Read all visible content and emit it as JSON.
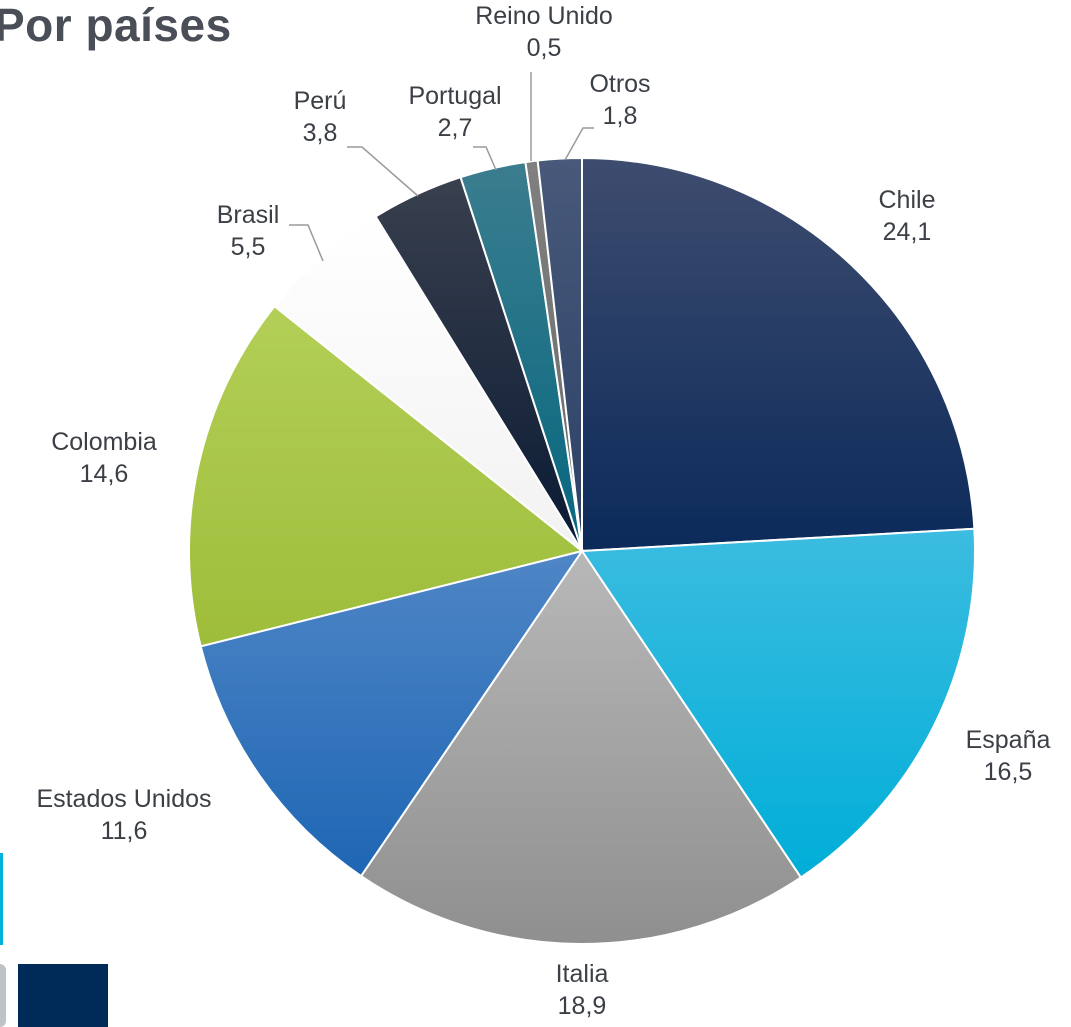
{
  "title": "Por países",
  "chart_data": {
    "type": "pie",
    "start_angle_deg": 0,
    "direction": "clockwise",
    "slices": [
      {
        "name": "Chile",
        "value": 24.1,
        "label": "24,1",
        "color": "#0b2a5a",
        "color_light": "#3e4c6e",
        "label_pos": "outside"
      },
      {
        "name": "España",
        "value": 16.5,
        "label": "16,5",
        "color": "#00aed8",
        "color_light": "#3cbce0",
        "label_pos": "outside"
      },
      {
        "name": "Italia",
        "value": 18.9,
        "label": "18,9",
        "color": "#8f8f8f",
        "color_light": "#b8b8b8",
        "label_pos": "outside"
      },
      {
        "name": "Estados Unidos",
        "value": 11.6,
        "label": "11,6",
        "color": "#1e66b4",
        "color_light": "#4f86c6",
        "label_pos": "outside"
      },
      {
        "name": "Colombia",
        "value": 14.6,
        "label": "14,6",
        "color": "#9ebd3a",
        "color_light": "#b3cf57",
        "label_pos": "outside"
      },
      {
        "name": "Brasil",
        "value": 5.5,
        "label": "5,5",
        "color": "#f2f2f2",
        "color_light": "#ffffff",
        "label_pos": "leader"
      },
      {
        "name": "Perú",
        "value": 3.8,
        "label": "3,8",
        "color": "#0a1a33",
        "color_light": "#39404e",
        "label_pos": "leader"
      },
      {
        "name": "Portugal",
        "value": 2.7,
        "label": "2,7",
        "color": "#06677e",
        "color_light": "#3b7d8f",
        "label_pos": "leader"
      },
      {
        "name": "Reino Unido",
        "value": 0.5,
        "label": "0,5",
        "color": "#6a6a6a",
        "color_light": "#808080",
        "label_pos": "leader"
      },
      {
        "name": "Otros",
        "value": 1.8,
        "label": "1,8",
        "color": "#2b4166",
        "color_light": "#48597a",
        "label_pos": "leader"
      }
    ],
    "legend": "none"
  },
  "decor": {
    "cyan_bar": "#00b2dc",
    "navy_block": "#002a58"
  }
}
